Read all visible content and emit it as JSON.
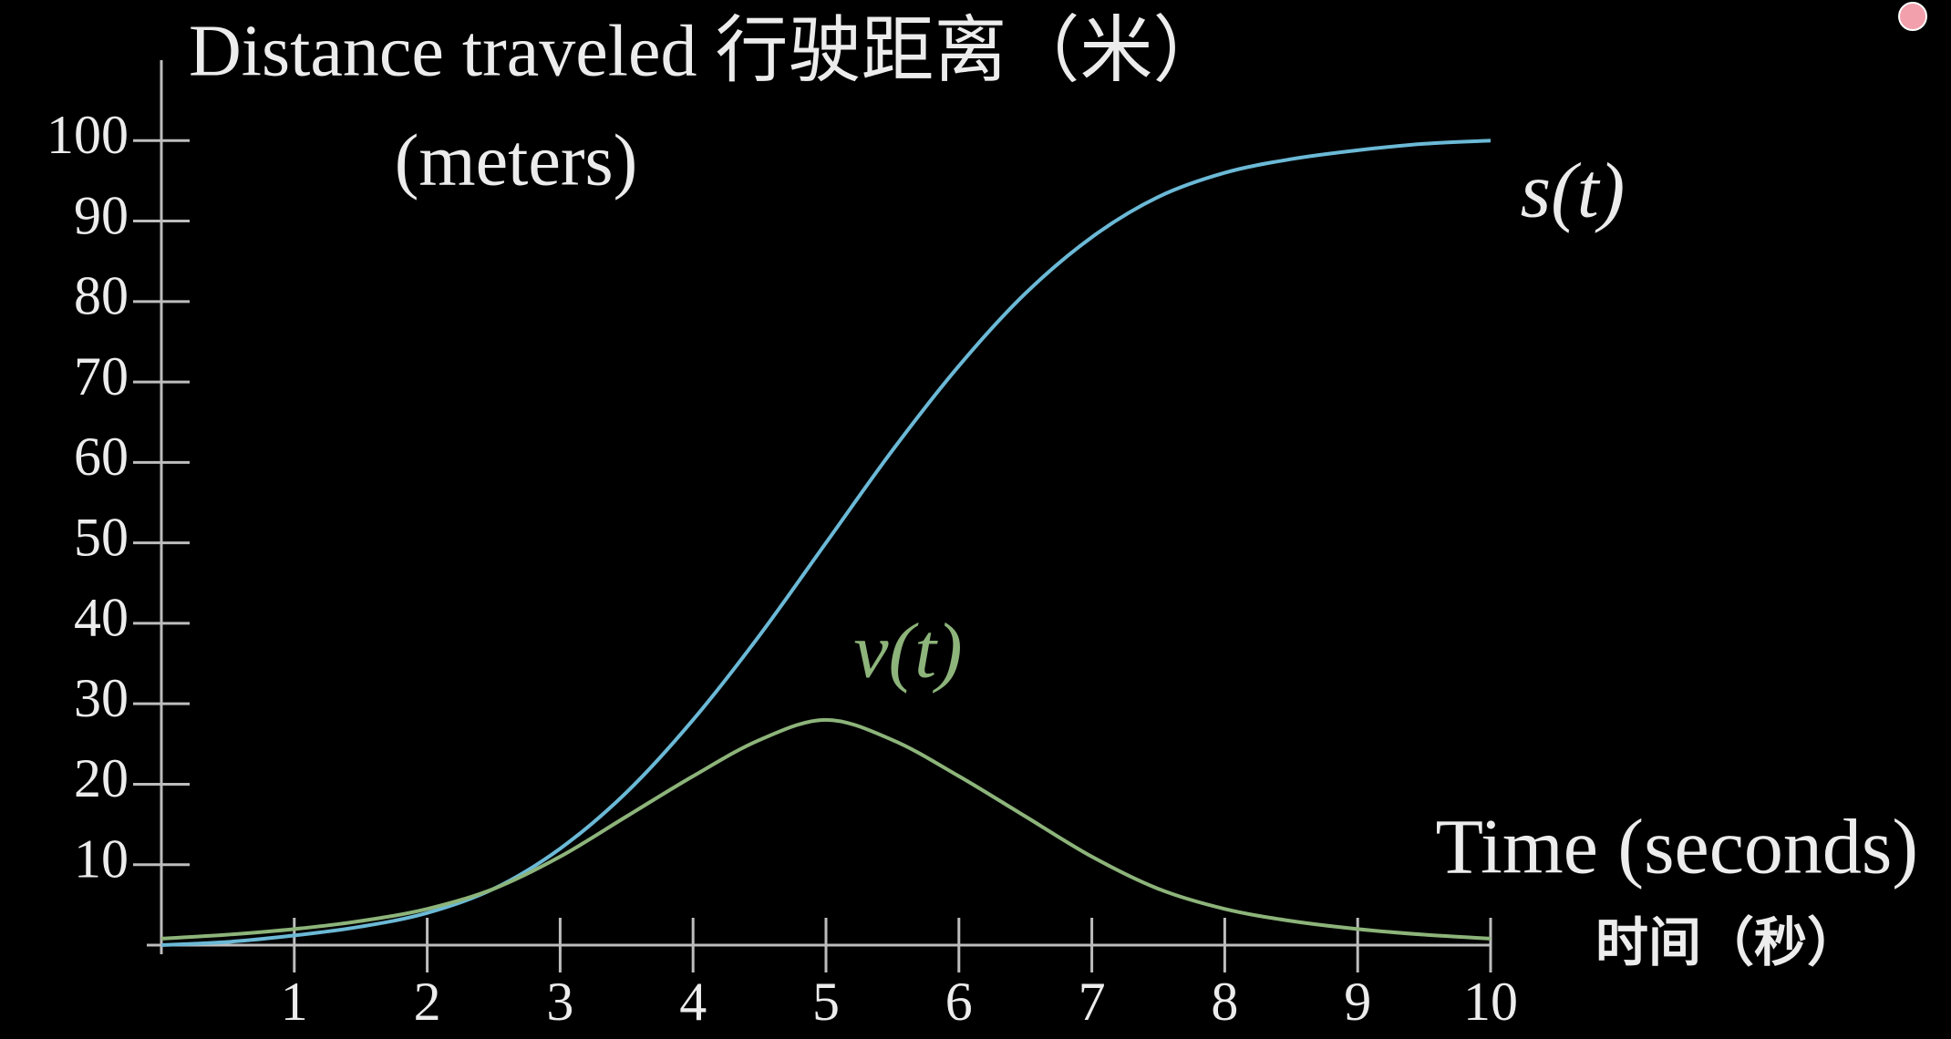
{
  "chart_data": {
    "type": "line",
    "title": "Distance traveled 行驶距离（米）",
    "subtitle": "(meters)",
    "x_label": "Time (seconds)",
    "x_label_2": "时间（秒）",
    "x": [
      0,
      0.5,
      1,
      1.5,
      2,
      2.5,
      3,
      3.5,
      4,
      4.5,
      5,
      5.5,
      6,
      6.5,
      7,
      7.5,
      8,
      8.5,
      9,
      9.5,
      10
    ],
    "series": [
      {
        "name": "s(t)",
        "color": "#6bb9d6",
        "values": [
          0,
          0.4,
          1.2,
          2.3,
          4,
          7,
          12,
          19,
          28,
          38.5,
          50,
          61.5,
          72,
          81,
          88,
          93,
          96,
          97.7,
          98.8,
          99.6,
          100
        ]
      },
      {
        "name": "v(t)",
        "color": "#8db47a",
        "values": [
          0.8,
          1.3,
          2,
          3,
          4.5,
          7,
          11,
          16,
          21,
          25.5,
          28,
          25.5,
          21,
          16,
          11,
          7,
          4.5,
          3,
          2,
          1.3,
          0.8
        ]
      }
    ],
    "xlim": [
      0,
      10
    ],
    "ylim": [
      0,
      110
    ],
    "xticks": [
      1,
      2,
      3,
      4,
      5,
      6,
      7,
      8,
      9,
      10
    ],
    "yticks": [
      10,
      20,
      30,
      40,
      50,
      60,
      70,
      80,
      90,
      100
    ],
    "grid": false
  }
}
